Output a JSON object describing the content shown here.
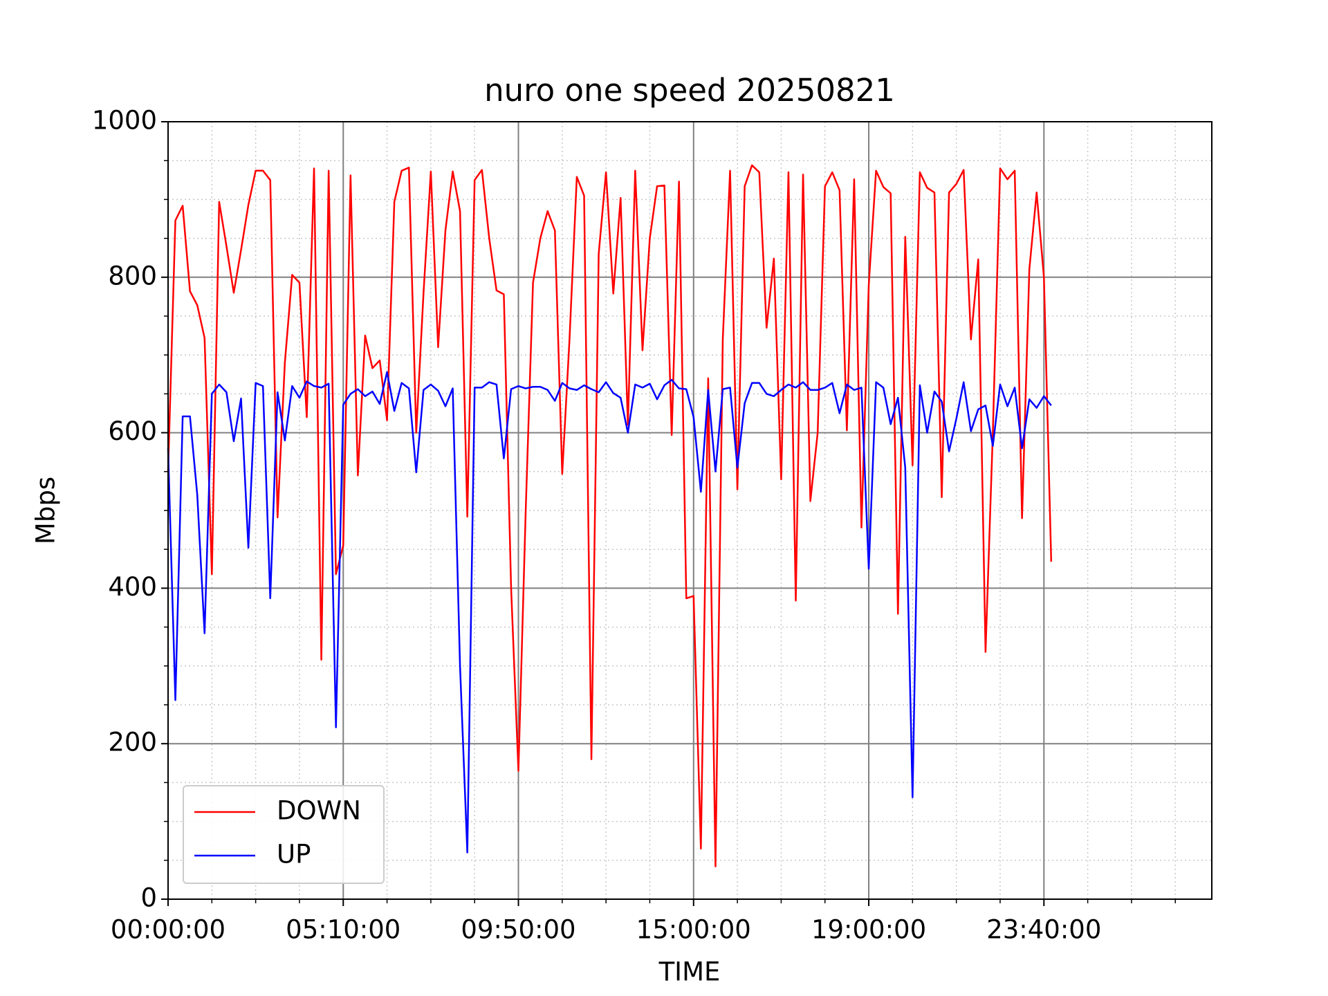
{
  "chart_data": {
    "type": "line",
    "title": "nuro one speed 20250821",
    "x_label": "TIME",
    "y_label": "Mbps",
    "xlim": [
      0,
      143
    ],
    "ylim": [
      0,
      1000
    ],
    "xticks": [
      {
        "value": 0,
        "label": "00:00:00"
      },
      {
        "value": 24,
        "label": "05:10:00"
      },
      {
        "value": 48,
        "label": "09:50:00"
      },
      {
        "value": 72,
        "label": "15:00:00"
      },
      {
        "value": 96,
        "label": "19:00:00"
      },
      {
        "value": 120,
        "label": "23:40:00"
      }
    ],
    "xminorticks": [
      6,
      12,
      18,
      30,
      36,
      42,
      54,
      60,
      66,
      78,
      84,
      90,
      102,
      108,
      114,
      126,
      132,
      138
    ],
    "yticks": [
      0,
      200,
      400,
      600,
      800,
      1000
    ],
    "yminorticks": [
      50,
      100,
      150,
      250,
      300,
      350,
      450,
      500,
      550,
      650,
      700,
      750,
      850,
      900,
      950
    ],
    "grid": true,
    "minor_grid": true,
    "legend_loc": "lower left",
    "series": [
      {
        "name": "DOWN",
        "color": "#ff0000",
        "values": [
          549,
          873,
          892,
          782,
          764,
          722,
          418,
          897,
          840,
          780,
          835,
          893,
          937,
          937,
          925,
          491,
          690,
          803,
          793,
          620,
          940,
          308,
          937,
          418,
          455,
          931,
          545,
          725,
          683,
          693,
          616,
          897,
          937,
          941,
          600,
          780,
          936,
          710,
          860,
          936,
          885,
          492,
          925,
          938,
          850,
          783,
          778,
          400,
          165,
          500,
          793,
          850,
          885,
          860,
          547,
          720,
          929,
          905,
          180,
          830,
          935,
          779,
          902,
          610,
          937,
          706,
          850,
          917,
          918,
          597,
          923,
          387,
          390,
          65,
          670,
          42,
          720,
          937,
          527,
          917,
          944,
          935,
          735,
          824,
          540,
          935,
          384,
          932,
          512,
          600,
          917,
          935,
          912,
          603,
          926,
          478,
          790,
          937,
          916,
          908,
          367,
          852,
          558,
          935,
          915,
          909,
          517,
          909,
          920,
          938,
          720,
          823,
          318,
          600,
          940,
          926,
          937,
          490,
          810,
          909,
          800,
          434
        ]
      },
      {
        "name": "UP",
        "color": "#0000ff",
        "values": [
          580,
          256,
          621,
          621,
          520,
          342,
          650,
          662,
          652,
          589,
          644,
          452,
          664,
          660,
          387,
          652,
          590,
          660,
          645,
          666,
          660,
          658,
          663,
          221,
          636,
          650,
          656,
          647,
          653,
          637,
          678,
          628,
          664,
          657,
          549,
          655,
          662,
          654,
          634,
          657,
          300,
          60,
          658,
          658,
          665,
          662,
          567,
          656,
          660,
          657,
          659,
          659,
          655,
          641,
          664,
          657,
          655,
          661,
          656,
          652,
          665,
          651,
          645,
          600,
          662,
          658,
          663,
          643,
          661,
          668,
          657,
          656,
          620,
          524,
          655,
          550,
          656,
          658,
          555,
          638,
          664,
          664,
          650,
          647,
          655,
          662,
          658,
          665,
          655,
          655,
          658,
          664,
          625,
          662,
          655,
          658,
          425,
          665,
          658,
          611,
          645,
          555,
          131,
          661,
          600,
          653,
          640,
          576,
          618,
          665,
          602,
          630,
          635,
          583,
          662,
          634,
          658,
          580,
          643,
          632,
          647,
          635
        ]
      }
    ]
  }
}
